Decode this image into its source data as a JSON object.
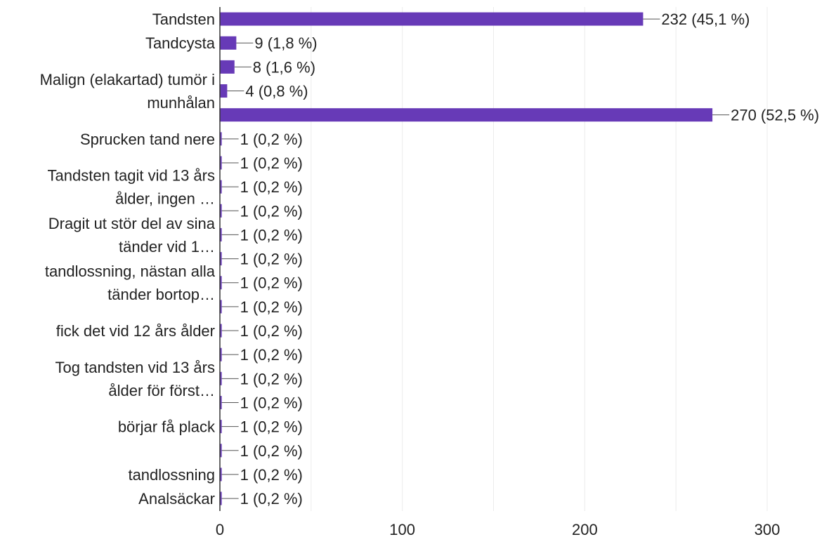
{
  "chart_data": {
    "type": "bar",
    "orientation": "horizontal",
    "bar_color": "#673ab7",
    "grid": true,
    "xlim": [
      0,
      300
    ],
    "x_ticks": [
      "0",
      "100",
      "200",
      "300"
    ],
    "row_labels": [
      {
        "text": [
          "Tandsten"
        ],
        "span": [
          0,
          0
        ]
      },
      {
        "text": [
          "Tandcysta"
        ],
        "span": [
          1,
          1
        ]
      },
      {
        "text": [
          "Malign (elakartad) tumör i",
          "munhålan"
        ],
        "span": [
          2,
          4
        ]
      },
      {
        "text": [
          "Sprucken tand nere"
        ],
        "span": [
          5,
          5
        ]
      },
      {
        "text": [
          "Tandsten tagit vid 13 års",
          "ålder, ingen …"
        ],
        "span": [
          6,
          8
        ]
      },
      {
        "text": [
          "Dragit ut stör del av sina",
          "tänder vid 1…"
        ],
        "span": [
          8,
          10
        ]
      },
      {
        "text": [
          "tandlossning, nästan alla",
          "tänder bortop…"
        ],
        "span": [
          10,
          12
        ]
      },
      {
        "text": [
          "fick det vid 12 års ålder"
        ],
        "span": [
          13,
          13
        ]
      },
      {
        "text": [
          "Tog tandsten vid 13 års",
          "ålder för först…"
        ],
        "span": [
          14,
          16
        ]
      },
      {
        "text": [
          "börjar få plack"
        ],
        "span": [
          17,
          17
        ]
      },
      {
        "text": [
          "tandlossning"
        ],
        "span": [
          19,
          19
        ]
      },
      {
        "text": [
          "Analsäckar"
        ],
        "span": [
          20,
          20
        ]
      }
    ],
    "values": [
      232,
      9,
      8,
      4,
      270,
      1,
      1,
      1,
      1,
      1,
      1,
      1,
      1,
      1,
      1,
      1,
      1,
      1,
      1,
      1,
      1
    ],
    "value_labels": [
      "232 (45,1 %)",
      "9 (1,8 %)",
      "8 (1,6 %)",
      "4 (0,8 %)",
      "270 (52,5 %)",
      "1 (0,2 %)",
      "1 (0,2 %)",
      "1 (0,2 %)",
      "1 (0,2 %)",
      "1 (0,2 %)",
      "1 (0,2 %)",
      "1 (0,2 %)",
      "1 (0,2 %)",
      "1 (0,2 %)",
      "1 (0,2 %)",
      "1 (0,2 %)",
      "1 (0,2 %)",
      "1 (0,2 %)",
      "1 (0,2 %)",
      "1 (0,2 %)",
      "1 (0,2 %)"
    ]
  }
}
